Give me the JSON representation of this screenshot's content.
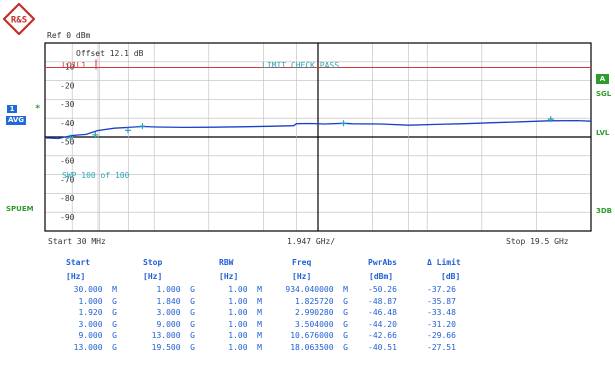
{
  "logo": {
    "text": "R&S"
  },
  "ref_label": "Ref  0 dBm",
  "offset_label": "Offset  12.1 dB",
  "limit_line_label": "LO1L1",
  "limit_check_label": "LIMIT CHECK   PASS",
  "sweep_label": "SWP   100 of   100",
  "side_left": {
    "trace_number": "1",
    "trace_mode": "AVG",
    "mode": "SPUEM",
    "star": "*"
  },
  "side_right": {
    "box": "A",
    "sgl": "SGL",
    "lvl": "LVL",
    "db": "3DB"
  },
  "footer": {
    "start": "Start  30 MHz",
    "center": "1.947 GHz/",
    "stop": "Stop  19.5 GHz"
  },
  "y_tick_labels": [
    "-10",
    "-20",
    "-30",
    "-40",
    "-50",
    "-60",
    "-70",
    "-80",
    "-90"
  ],
  "table": {
    "headers": [
      "Start",
      "Stop",
      "RBW",
      "Freq",
      "PwrAbs",
      "Δ Limit"
    ],
    "units": [
      "[Hz]",
      "[Hz]",
      "[Hz]",
      "[Hz]",
      "[dBm]",
      "[dB]"
    ],
    "rows": [
      [
        "30.000  M",
        "1.000  G",
        "1.00  M",
        "934.040000  M",
        "-50.26",
        "-37.26"
      ],
      [
        "1.000  G",
        "1.840  G",
        "1.00  M",
        "1.825720  G",
        "-48.87",
        "-35.87"
      ],
      [
        "1.920  G",
        "3.000  G",
        "1.00  M",
        "2.990280  G",
        "-46.48",
        "-33.48"
      ],
      [
        "3.000  G",
        "9.000  G",
        "1.00  M",
        "3.504000  G",
        "-44.20",
        "-31.20"
      ],
      [
        "9.000  G",
        "13.000  G",
        "1.00  M",
        "10.676000  G",
        "-42.66",
        "-29.66"
      ],
      [
        "13.000  G",
        "19.500  G",
        "1.00  M",
        "18.063500  G",
        "-40.51",
        "-27.51"
      ]
    ]
  },
  "colors": {
    "trace": "#1a3fc8",
    "limit": "#d23a3a",
    "grid": "#bdbdbd",
    "text_blue": "#1f5fd6",
    "green": "#2e9b2e",
    "marker": "#2aa6b8"
  },
  "chart_data": {
    "type": "line",
    "x_unit": "GHz",
    "xlim": [
      0.03,
      19.5
    ],
    "ylim": [
      -100,
      0
    ],
    "trace": {
      "x": [
        0.03,
        0.5,
        1.0,
        1.5,
        1.9,
        2.5,
        3.0,
        3.5,
        4.0,
        5.0,
        6.0,
        7.0,
        8.0,
        8.9,
        9.0,
        9.5,
        10.0,
        10.7,
        11.0,
        12.0,
        13.0,
        14.0,
        15.0,
        16.0,
        17.0,
        18.0,
        19.0,
        19.5
      ],
      "y": [
        -50.5,
        -50.8,
        -49.2,
        -48.6,
        -46.6,
        -45.3,
        -44.9,
        -44.4,
        -44.7,
        -44.9,
        -44.8,
        -44.6,
        -44.3,
        -44.0,
        -42.9,
        -42.8,
        -43.1,
        -42.7,
        -43.0,
        -43.1,
        -43.7,
        -43.3,
        -42.9,
        -42.4,
        -41.9,
        -41.4,
        -41.3,
        -41.6
      ]
    },
    "limit": {
      "y": -13.0
    },
    "markers": [
      {
        "x": 0.934,
        "y": -50.26
      },
      {
        "x": 1.826,
        "y": -48.87
      },
      {
        "x": 2.99,
        "y": -46.48
      },
      {
        "x": 3.504,
        "y": -44.2
      },
      {
        "x": 10.676,
        "y": -42.66
      },
      {
        "x": 18.064,
        "y": -40.51
      }
    ],
    "segment_boundaries": [
      1.0,
      1.92,
      3.0,
      9.0,
      13.0
    ]
  }
}
